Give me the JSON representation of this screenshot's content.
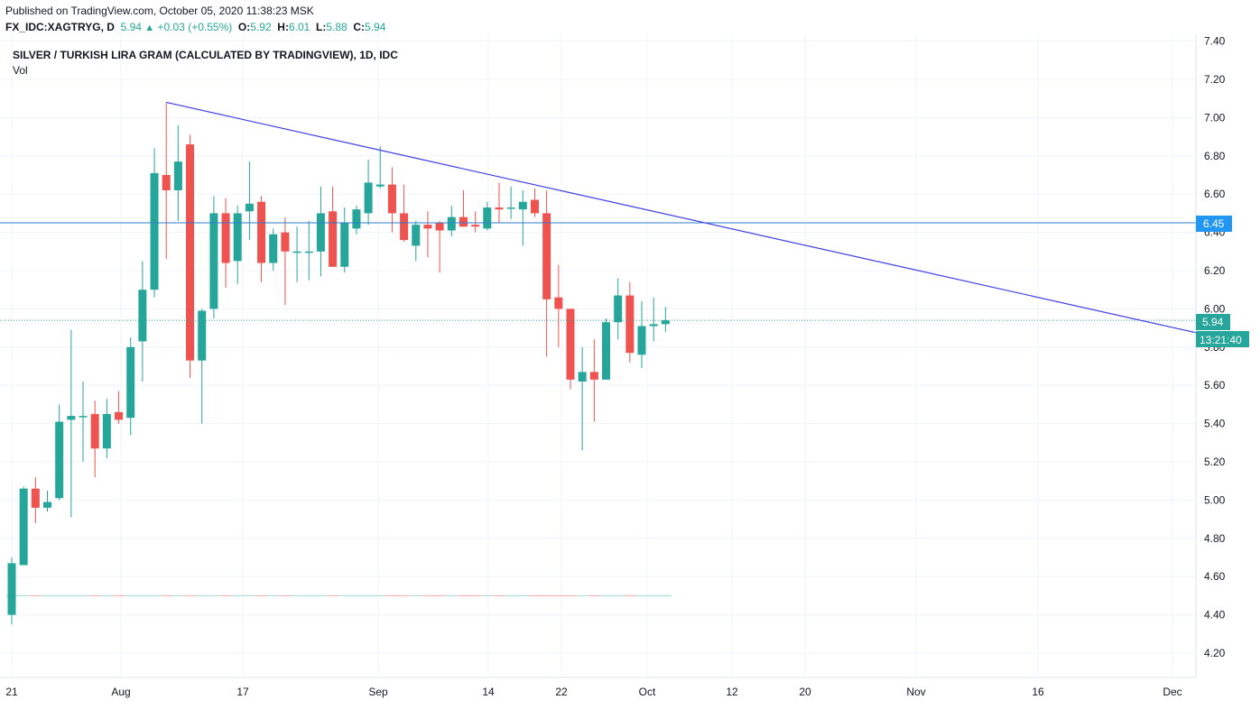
{
  "header": {
    "published": "Published on TradingView.com, October 05, 2020 11:38:23 MSK",
    "symbol": "FX_IDC:XAGTRYG, D",
    "last": "5.94",
    "change": "+0.03 (+0.55%)",
    "o_label": "O:",
    "o_value": "5.92",
    "h_label": "H:",
    "h_value": "6.01",
    "l_label": "L:",
    "l_value": "5.88",
    "c_label": "C:",
    "c_value": "5.94"
  },
  "legend": {
    "title": "SILVER / TURKISH LIRA GRAM (CALCULATED BY TRADINGVIEW), 1D, IDC",
    "vol": "Vol"
  },
  "price_badges": {
    "level": "6.45",
    "last": "5.94",
    "countdown": "13:21:40"
  },
  "colors": {
    "up": "#26a69a",
    "down": "#ef5350",
    "trendline": "#3f3fe6",
    "hline": "#2e7ec9",
    "level_badge": "#2196f3",
    "grid": "#f0f3fa"
  },
  "chart_data": {
    "type": "candlestick",
    "yaxis": {
      "ylim": [
        4.1,
        7.45
      ],
      "ticks": [
        "4.20",
        "4.40",
        "4.60",
        "4.80",
        "5.00",
        "5.20",
        "5.40",
        "5.60",
        "5.80",
        "6.00",
        "6.20",
        "6.40",
        "6.60",
        "6.80",
        "7.00",
        "7.20",
        "7.40"
      ]
    },
    "xaxis": {
      "ticks": [
        "21",
        "Aug",
        "17",
        "Sep",
        "14",
        "22",
        "Oct",
        "12",
        "20",
        "Nov",
        "16",
        "Dec"
      ]
    },
    "grid": true,
    "candles": [
      {
        "o": 4.4,
        "h": 4.7,
        "l": 4.35,
        "c": 4.67
      },
      {
        "o": 4.66,
        "h": 5.07,
        "l": 4.66,
        "c": 5.06
      },
      {
        "o": 5.06,
        "h": 5.12,
        "l": 4.88,
        "c": 4.96
      },
      {
        "o": 4.96,
        "h": 5.05,
        "l": 4.94,
        "c": 4.99
      },
      {
        "o": 5.01,
        "h": 5.5,
        "l": 5.0,
        "c": 5.41
      },
      {
        "o": 5.42,
        "h": 5.89,
        "l": 4.91,
        "c": 5.44
      },
      {
        "o": 5.44,
        "h": 5.62,
        "l": 5.2,
        "c": 5.44
      },
      {
        "o": 5.45,
        "h": 5.52,
        "l": 5.12,
        "c": 5.27
      },
      {
        "o": 5.27,
        "h": 5.53,
        "l": 5.22,
        "c": 5.45
      },
      {
        "o": 5.46,
        "h": 5.57,
        "l": 5.4,
        "c": 5.42
      },
      {
        "o": 5.43,
        "h": 5.85,
        "l": 5.34,
        "c": 5.8
      },
      {
        "o": 5.83,
        "h": 6.25,
        "l": 5.62,
        "c": 6.1
      },
      {
        "o": 6.1,
        "h": 6.84,
        "l": 6.06,
        "c": 6.71
      },
      {
        "o": 6.7,
        "h": 7.08,
        "l": 6.26,
        "c": 6.62
      },
      {
        "o": 6.62,
        "h": 6.96,
        "l": 6.46,
        "c": 6.77
      },
      {
        "o": 6.86,
        "h": 6.91,
        "l": 5.64,
        "c": 5.73
      },
      {
        "o": 5.73,
        "h": 6.0,
        "l": 5.4,
        "c": 5.99
      },
      {
        "o": 6.0,
        "h": 6.59,
        "l": 5.95,
        "c": 6.5
      },
      {
        "o": 6.5,
        "h": 6.58,
        "l": 6.11,
        "c": 6.24
      },
      {
        "o": 6.25,
        "h": 6.54,
        "l": 6.13,
        "c": 6.5
      },
      {
        "o": 6.51,
        "h": 6.77,
        "l": 6.36,
        "c": 6.55
      },
      {
        "o": 6.56,
        "h": 6.59,
        "l": 6.14,
        "c": 6.24
      },
      {
        "o": 6.24,
        "h": 6.42,
        "l": 6.2,
        "c": 6.39
      },
      {
        "o": 6.4,
        "h": 6.48,
        "l": 6.02,
        "c": 6.3
      },
      {
        "o": 6.3,
        "h": 6.43,
        "l": 6.14,
        "c": 6.3
      },
      {
        "o": 6.3,
        "h": 6.46,
        "l": 6.15,
        "c": 6.3
      },
      {
        "o": 6.3,
        "h": 6.64,
        "l": 6.17,
        "c": 6.5
      },
      {
        "o": 6.51,
        "h": 6.64,
        "l": 6.22,
        "c": 6.22
      },
      {
        "o": 6.22,
        "h": 6.53,
        "l": 6.19,
        "c": 6.45
      },
      {
        "o": 6.42,
        "h": 6.54,
        "l": 6.39,
        "c": 6.52
      },
      {
        "o": 6.5,
        "h": 6.78,
        "l": 6.44,
        "c": 6.66
      },
      {
        "o": 6.64,
        "h": 6.85,
        "l": 6.63,
        "c": 6.65
      },
      {
        "o": 6.65,
        "h": 6.74,
        "l": 6.4,
        "c": 6.5
      },
      {
        "o": 6.5,
        "h": 6.65,
        "l": 6.35,
        "c": 6.36
      },
      {
        "o": 6.33,
        "h": 6.46,
        "l": 6.25,
        "c": 6.44
      },
      {
        "o": 6.44,
        "h": 6.51,
        "l": 6.27,
        "c": 6.42
      },
      {
        "o": 6.45,
        "h": 6.46,
        "l": 6.19,
        "c": 6.41
      },
      {
        "o": 6.41,
        "h": 6.54,
        "l": 6.38,
        "c": 6.48
      },
      {
        "o": 6.48,
        "h": 6.62,
        "l": 6.43,
        "c": 6.43
      },
      {
        "o": 6.44,
        "h": 6.51,
        "l": 6.4,
        "c": 6.43
      },
      {
        "o": 6.42,
        "h": 6.56,
        "l": 6.41,
        "c": 6.53
      },
      {
        "o": 6.53,
        "h": 6.66,
        "l": 6.45,
        "c": 6.52
      },
      {
        "o": 6.53,
        "h": 6.64,
        "l": 6.47,
        "c": 6.53
      },
      {
        "o": 6.52,
        "h": 6.62,
        "l": 6.33,
        "c": 6.56
      },
      {
        "o": 6.57,
        "h": 6.63,
        "l": 6.48,
        "c": 6.5
      },
      {
        "o": 6.5,
        "h": 6.62,
        "l": 5.75,
        "c": 6.05
      },
      {
        "o": 6.06,
        "h": 6.23,
        "l": 5.8,
        "c": 6.0
      },
      {
        "o": 6.0,
        "h": 6.0,
        "l": 5.58,
        "c": 5.63
      },
      {
        "o": 5.62,
        "h": 5.8,
        "l": 5.26,
        "c": 5.67
      },
      {
        "o": 5.67,
        "h": 5.84,
        "l": 5.41,
        "c": 5.63
      },
      {
        "o": 5.63,
        "h": 5.95,
        "l": 5.63,
        "c": 5.93
      },
      {
        "o": 5.93,
        "h": 6.16,
        "l": 5.84,
        "c": 6.07
      },
      {
        "o": 6.07,
        "h": 6.14,
        "l": 5.72,
        "c": 5.77
      },
      {
        "o": 5.76,
        "h": 6.04,
        "l": 5.69,
        "c": 5.91
      },
      {
        "o": 5.91,
        "h": 6.06,
        "l": 5.83,
        "c": 5.92
      },
      {
        "o": 5.92,
        "h": 6.01,
        "l": 5.88,
        "c": 5.94
      }
    ],
    "hline": 6.45,
    "last_price": 5.94,
    "trendline": {
      "from": [
        13,
        7.08
      ],
      "to": [
        100,
        5.87
      ]
    },
    "volume_line": 4.5
  }
}
